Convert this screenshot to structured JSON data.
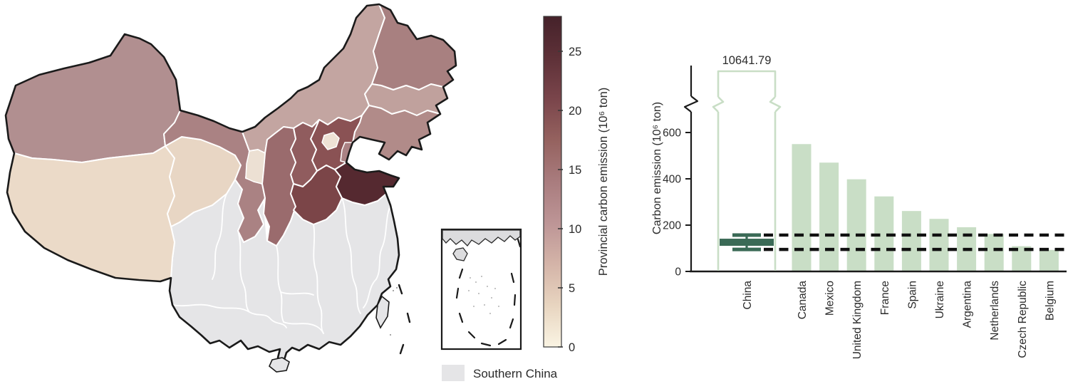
{
  "chart_data": [
    {
      "type": "choropleth_map",
      "region_shown": "China",
      "colorbar": {
        "label": "Provincial carbon emission (10⁶ ton)",
        "ticks": [
          0,
          5,
          10,
          15,
          20,
          25
        ],
        "value_range": [
          0,
          28
        ],
        "gradient_top_to_bottom": [
          "#45222a",
          "#5e3138",
          "#7a454b",
          "#95625f",
          "#a97c7e",
          "#bd9596",
          "#d4b4a8",
          "#e8d5c0",
          "#faf4e3"
        ]
      },
      "legend": {
        "label": "Southern China",
        "swatch_color": "#e5e5e7"
      },
      "inset": {
        "name": "South China Sea inset",
        "nine_dash_line": true
      },
      "regions": [
        {
          "id": "xinjiang",
          "name": "Xinjiang",
          "color": "#b18f90",
          "value_est": 9
        },
        {
          "id": "tibet",
          "name": "Tibet",
          "color": "#ebdac8",
          "value_est": 2
        },
        {
          "id": "qinghai",
          "name": "Qinghai",
          "color": "#e8d6c4",
          "value_est": 2.5
        },
        {
          "id": "gansu",
          "name": "Gansu",
          "color": "#aa8283",
          "value_est": 11
        },
        {
          "id": "inner-mongolia",
          "name": "Inner Mongolia",
          "color": "#c3a5a1",
          "value_est": 7.5
        },
        {
          "id": "heilongjiang",
          "name": "Heilongjiang",
          "color": "#a88080",
          "value_est": 11.5
        },
        {
          "id": "jilin",
          "name": "Jilin",
          "color": "#c0a19d",
          "value_est": 6.5
        },
        {
          "id": "liaoning",
          "name": "Liaoning",
          "color": "#b18b89",
          "value_est": 9.5
        },
        {
          "id": "hebei",
          "name": "Hebei",
          "color": "#8a5254",
          "value_est": 17
        },
        {
          "id": "shanxi",
          "name": "Shanxi",
          "color": "#905c5e",
          "value_est": 15
        },
        {
          "id": "shaanxi",
          "name": "Shaanxi",
          "color": "#9a6b6d",
          "value_est": 13
        },
        {
          "id": "ningxia",
          "name": "Ningxia",
          "color": "#ece0d3",
          "value_est": 1.8
        },
        {
          "id": "henan",
          "name": "Henan",
          "color": "#7b4548",
          "value_est": 19
        },
        {
          "id": "shandong",
          "name": "Shandong",
          "color": "#552930",
          "value_est": 27.7
        },
        {
          "id": "beijing",
          "name": "Beijing",
          "color": "#eee2d5",
          "value_est": 1.5
        },
        {
          "id": "tianjin",
          "name": "Tianjin",
          "color": "#aa8284",
          "value_est": 10.5
        }
      ]
    },
    {
      "type": "bar",
      "categories": [
        "China",
        "Canada",
        "Mexico",
        "United Kingdom",
        "France",
        "Spain",
        "Ukraine",
        "Argentina",
        "Netherlands",
        "Czech Republic",
        "Belgium"
      ],
      "values": [
        10641.79,
        550,
        470,
        398,
        324,
        261,
        227,
        191,
        162,
        109,
        93
      ],
      "ylabel": "Carbon emission (10⁶ ton)",
      "yticks": [
        0,
        200,
        400,
        600
      ],
      "ylim": [
        0,
        700
      ],
      "axis_break": true,
      "china_bar_label": "10641.79",
      "china_bar_style": "outlined-with-break",
      "bar_fill": "#c9dec6",
      "china_bar_outline": "#c9dec6",
      "error_bar": {
        "category": "China",
        "center": 126,
        "upper": 157,
        "lower": 95,
        "color": "#3a6a56"
      },
      "reference_dashed_lines": [
        157,
        95
      ],
      "grid": false,
      "legend_position": "none"
    }
  ]
}
